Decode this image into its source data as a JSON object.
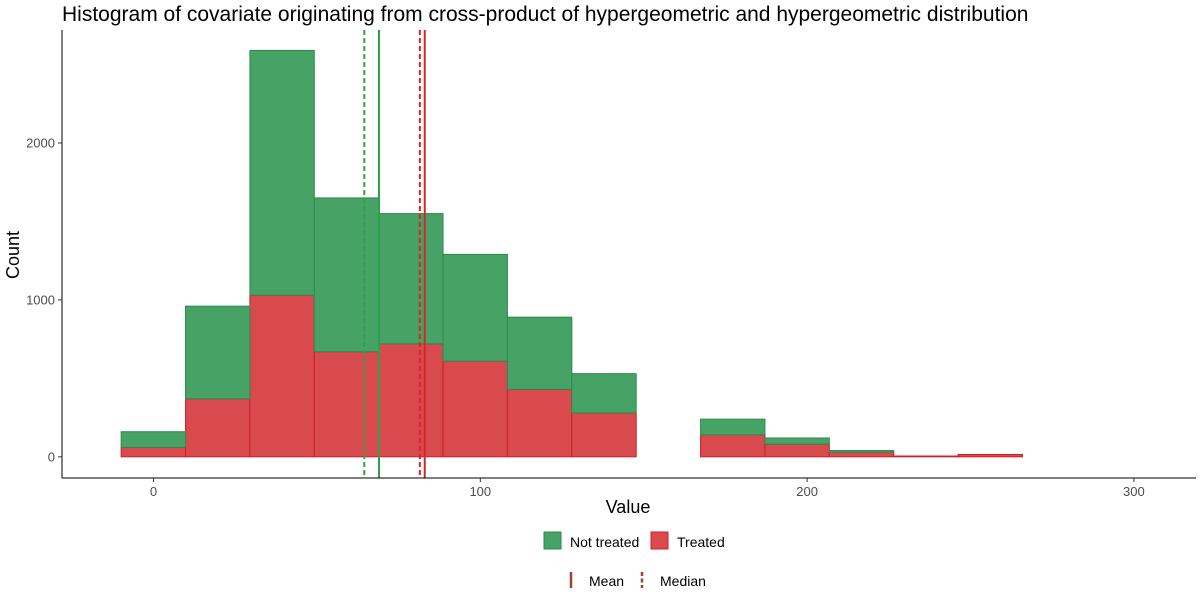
{
  "chart_data": {
    "type": "histogram",
    "title": "Histogram of covariate originating from cross-product of hypergeometric and hypergeometric distribution",
    "xlabel": "Value",
    "ylabel": "Count",
    "xlim": [
      -28,
      319
    ],
    "ylim": [
      -135,
      2720
    ],
    "x_ticks": [
      0,
      100,
      200,
      300
    ],
    "y_ticks": [
      0,
      1000,
      2000
    ],
    "bin_width": 19.7,
    "bin_edges": [
      -9.9,
      9.8,
      29.5,
      49.2,
      68.9,
      88.6,
      108.3,
      128.0,
      147.7,
      167.4,
      187.1,
      206.8,
      226.5,
      246.2,
      265.9,
      285.6
    ],
    "series": [
      {
        "name": "Not treated",
        "color": "#47a265",
        "stroke": "#2e8b4a",
        "values": [
          100,
          590,
          1560,
          980,
          830,
          680,
          460,
          250,
          0,
          100,
          40,
          10,
          0,
          0,
          0
        ]
      },
      {
        "name": "Treated",
        "color": "#d94a4e",
        "stroke": "#cc1f26",
        "values": [
          60,
          370,
          1030,
          670,
          720,
          610,
          430,
          280,
          0,
          140,
          80,
          30,
          5,
          15,
          0
        ]
      }
    ],
    "stacked": true,
    "reference_lines": [
      {
        "group": "Not treated",
        "stat": "Mean",
        "value": 69,
        "color": "#2aa34a",
        "style": "solid"
      },
      {
        "group": "Not treated",
        "stat": "Median",
        "value": 64.5,
        "color": "#2aa34a",
        "style": "dashed"
      },
      {
        "group": "Treated",
        "stat": "Mean",
        "value": 83,
        "color": "#d62728",
        "style": "solid"
      },
      {
        "group": "Treated",
        "stat": "Median",
        "value": 81.5,
        "color": "#d62728",
        "style": "dashed"
      }
    ],
    "legend": {
      "placement": "bottom",
      "fill_items": [
        "Not treated",
        "Treated"
      ],
      "line_items": [
        {
          "label": "Mean",
          "style": "solid",
          "color": "#a0412e"
        },
        {
          "label": "Median",
          "style": "dashed",
          "color": "#a0412e"
        }
      ]
    },
    "grid": false
  }
}
